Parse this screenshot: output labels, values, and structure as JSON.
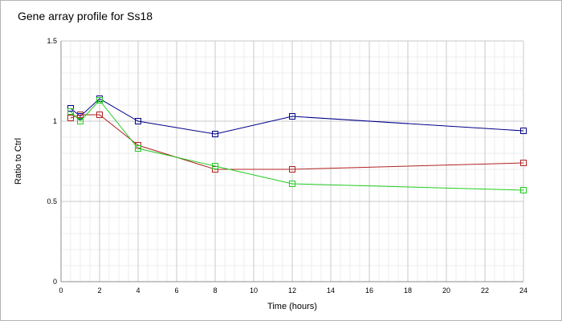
{
  "chart_data": {
    "type": "line",
    "title": "Gene array profile for Ss18",
    "xlabel": "Time (hours)",
    "ylabel": "Ratio to Ctrl",
    "xlim": [
      0,
      24
    ],
    "ylim": [
      0,
      1.5
    ],
    "xticks": [
      0,
      2,
      4,
      6,
      8,
      10,
      12,
      14,
      16,
      18,
      20,
      22,
      24
    ],
    "yticks": [
      0,
      0.5,
      1,
      1.5
    ],
    "ytick_labels": [
      "0",
      "0.5",
      "1",
      "1.5"
    ],
    "grid": true,
    "marker": "square",
    "series": [
      {
        "color": "#00008b",
        "points": [
          [
            0.5,
            1.08
          ],
          [
            1,
            1.03
          ],
          [
            2,
            1.14
          ],
          [
            4,
            1.0
          ],
          [
            8,
            0.92
          ],
          [
            12,
            1.03
          ],
          [
            24,
            0.94
          ]
        ]
      },
      {
        "color": "#b22222",
        "points": [
          [
            0.5,
            1.02
          ],
          [
            1,
            1.04
          ],
          [
            2,
            1.04
          ],
          [
            4,
            0.85
          ],
          [
            8,
            0.7
          ],
          [
            12,
            0.7
          ],
          [
            24,
            0.74
          ]
        ]
      },
      {
        "color": "#22cc22",
        "points": [
          [
            0.5,
            1.06
          ],
          [
            1,
            1.0
          ],
          [
            2,
            1.13
          ],
          [
            4,
            0.83
          ],
          [
            8,
            0.72
          ],
          [
            12,
            0.61
          ],
          [
            24,
            0.57
          ]
        ]
      }
    ]
  }
}
